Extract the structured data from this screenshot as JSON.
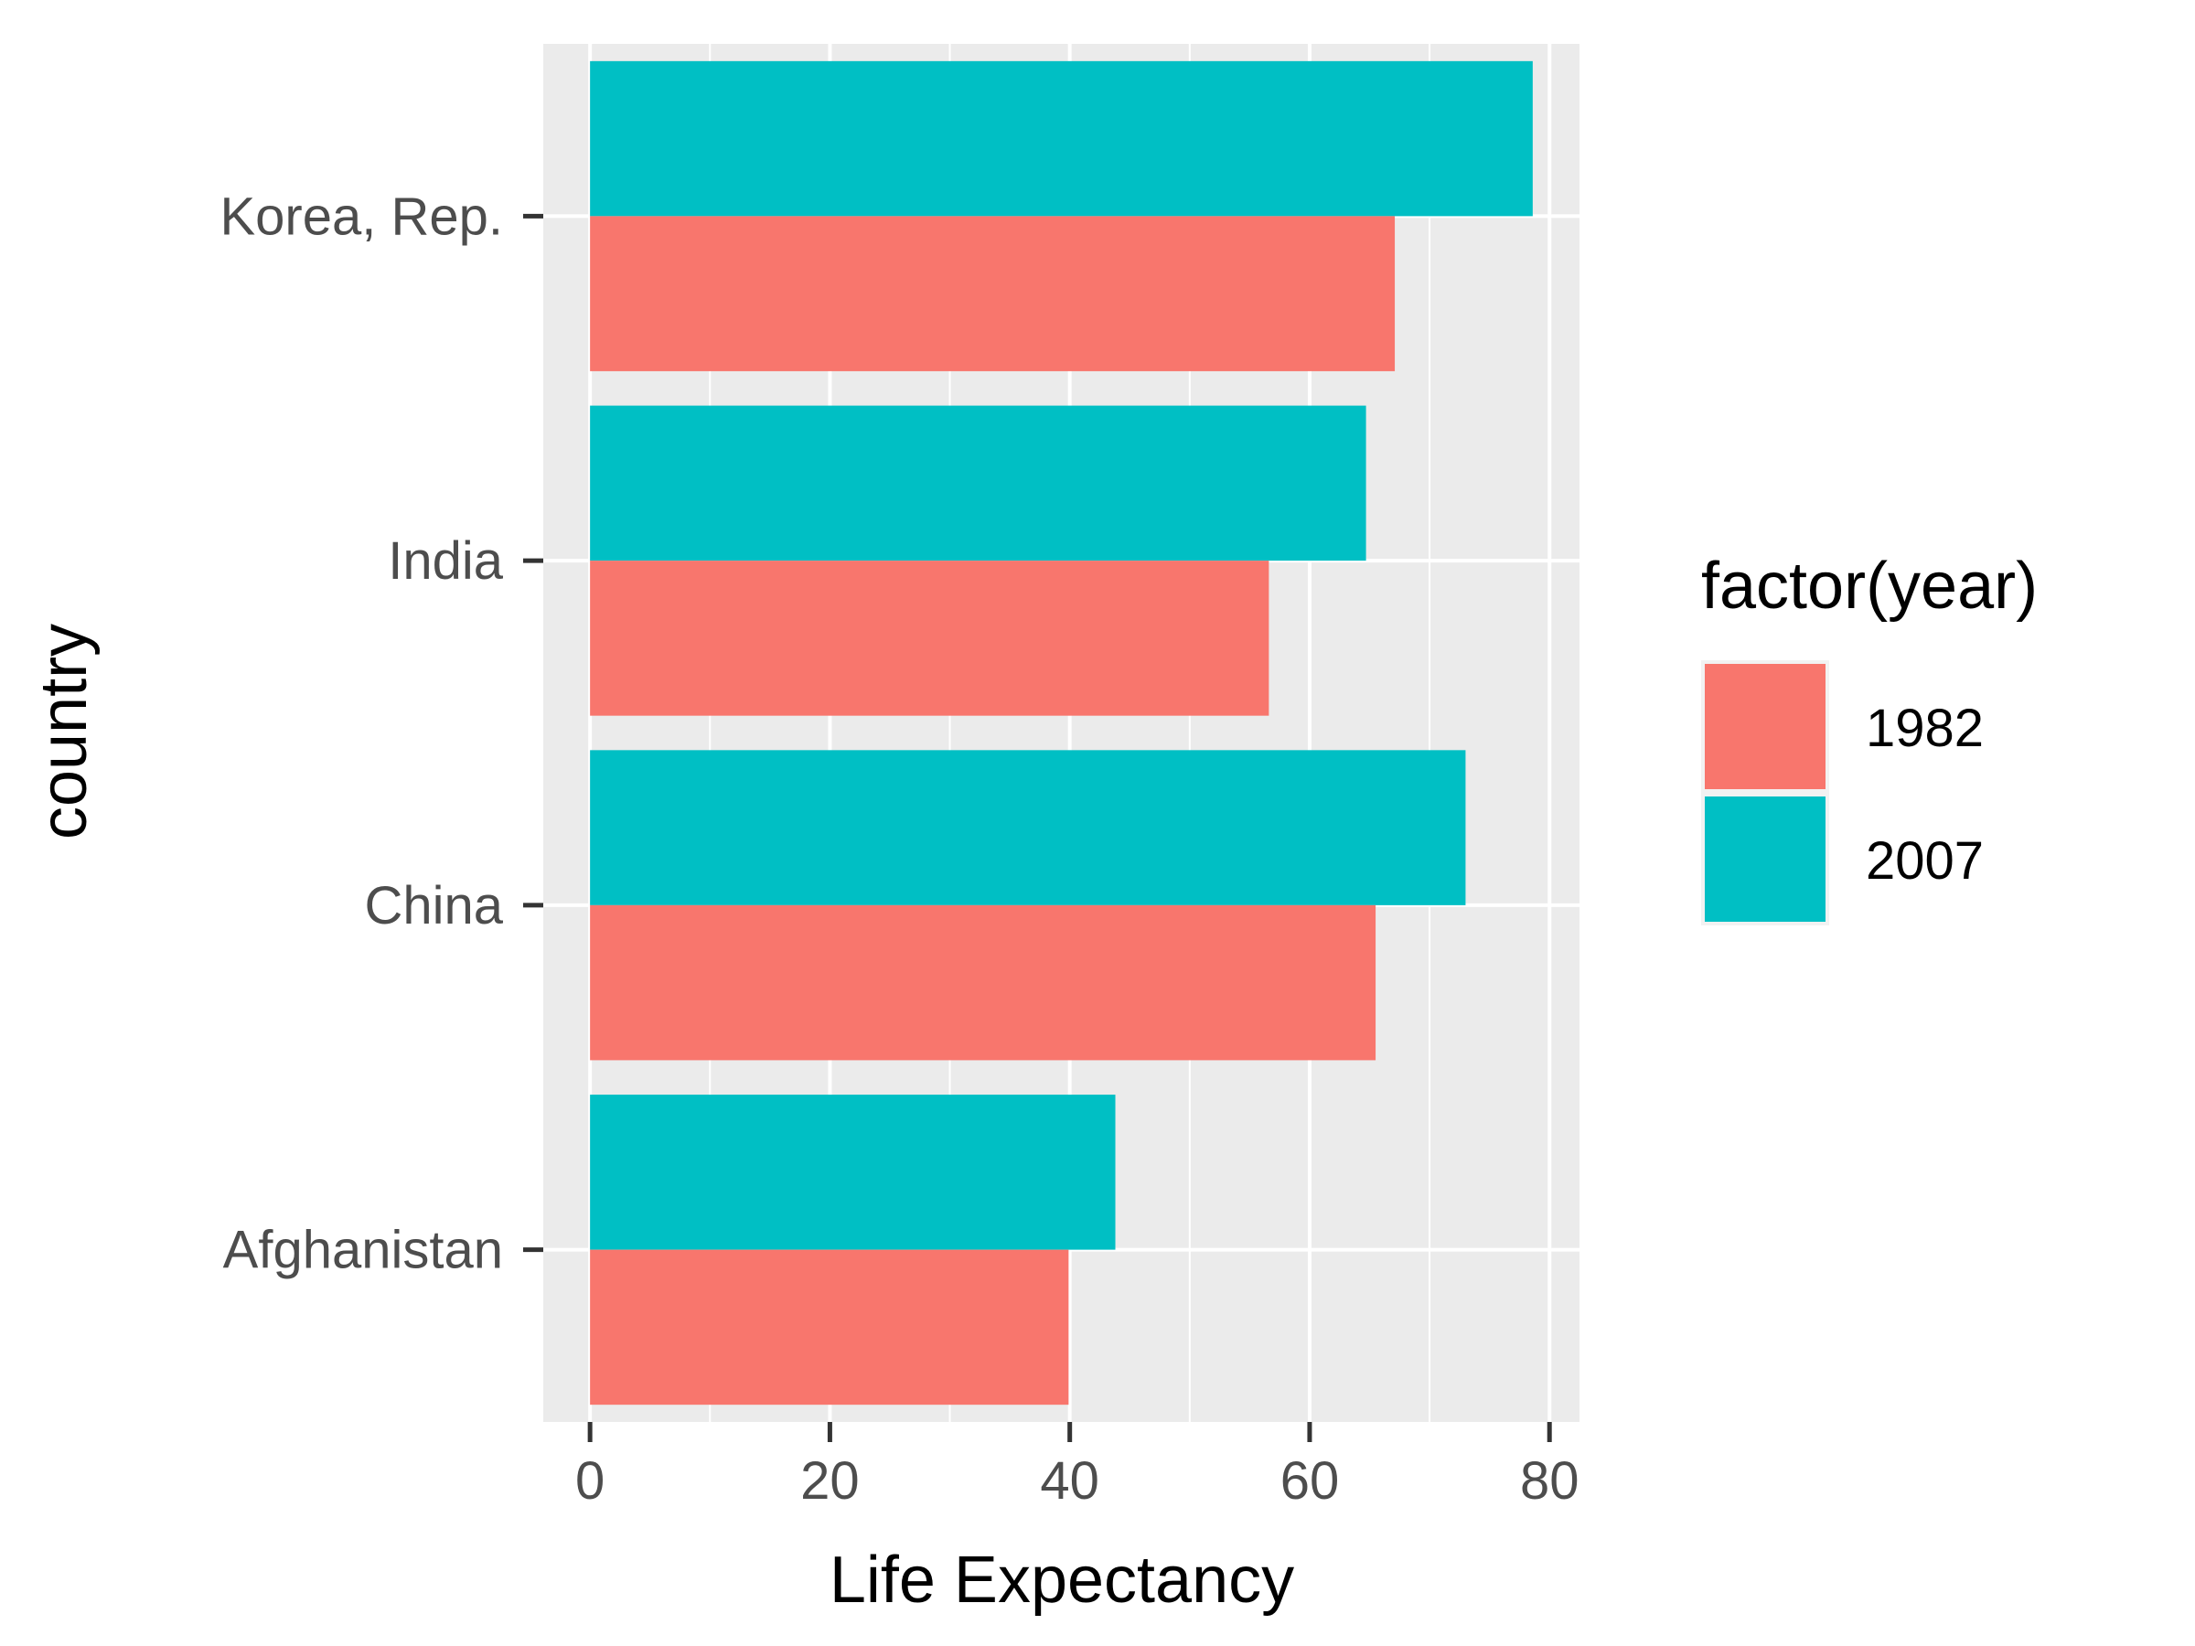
{
  "chart_data": {
    "type": "bar",
    "orientation": "horizontal",
    "categories": [
      "Korea, Rep.",
      "India",
      "China",
      "Afghanistan"
    ],
    "series": [
      {
        "name": "1982",
        "color": "#F8766D",
        "values": [
          67.1,
          56.6,
          65.5,
          39.9
        ]
      },
      {
        "name": "2007",
        "color": "#00BFC4",
        "values": [
          78.6,
          64.7,
          73.0,
          43.8
        ]
      }
    ],
    "xlabel": "Life Expectancy",
    "ylabel": "country",
    "xlim": [
      -3.9,
      82.5
    ],
    "xticks": [
      "0",
      "20",
      "40",
      "60",
      "80"
    ],
    "grid": true,
    "panel_background": "#EBEBEB",
    "legend": {
      "title": "factor(year)",
      "position": "right"
    }
  }
}
